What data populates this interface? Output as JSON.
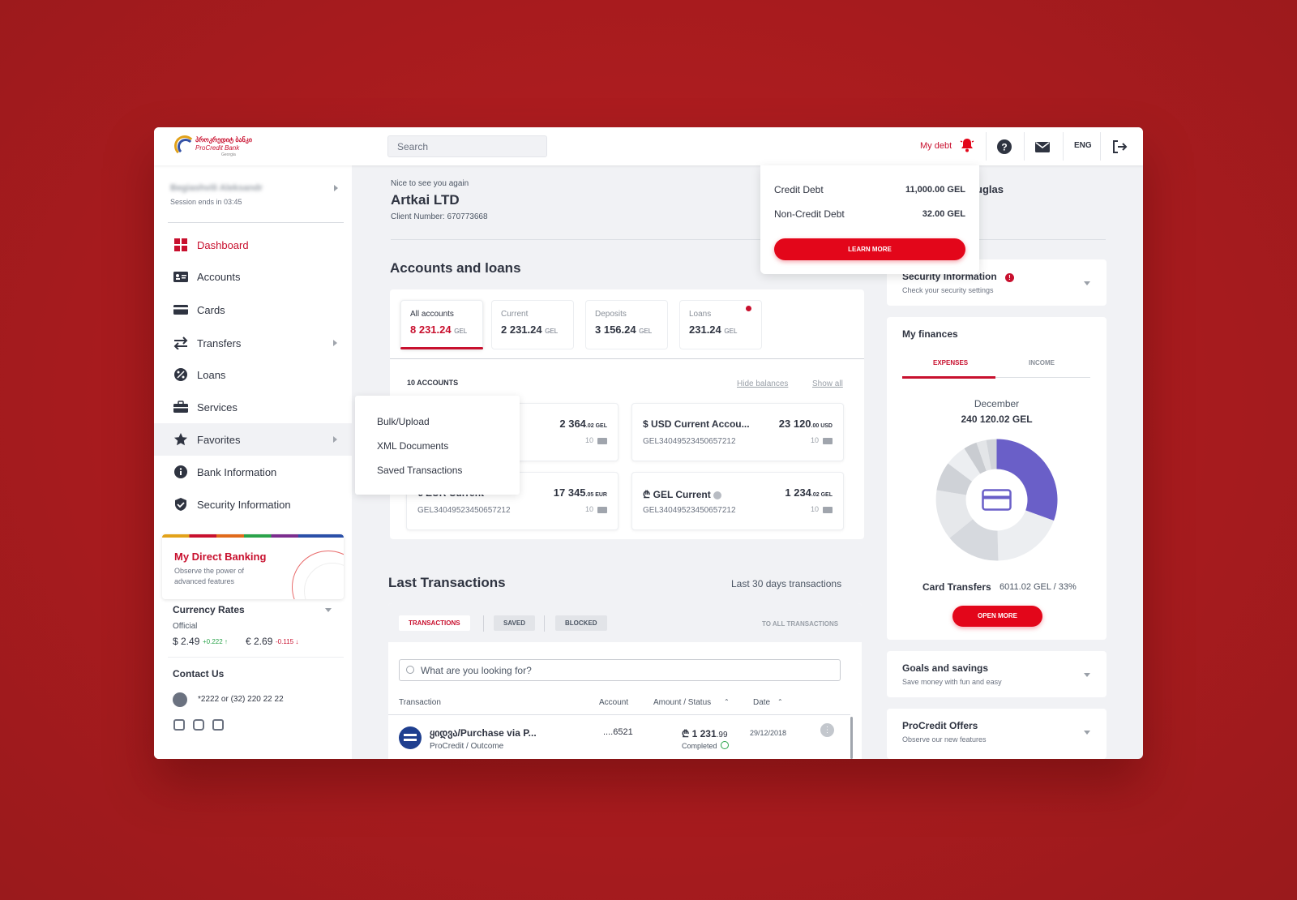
{
  "header": {
    "logo_line1": "პროკრედიტ ბანკი",
    "logo_line2": "ProCredit Bank",
    "logo_line3": "Georgia",
    "search_placeholder": "Search",
    "my_debt": "My debt",
    "language": "ENG",
    "icons": [
      "bell-icon",
      "help-icon",
      "mail-icon",
      "logout-icon"
    ]
  },
  "sidebar": {
    "user_name": "Begiashvili Aleksandr",
    "session": "Session ends in 03:45",
    "items": [
      {
        "label": "Dashboard",
        "icon": "dashboard-icon"
      },
      {
        "label": "Accounts",
        "icon": "accounts-icon"
      },
      {
        "label": "Cards",
        "icon": "card-icon"
      },
      {
        "label": "Transfers",
        "icon": "transfer-icon"
      },
      {
        "label": "Loans",
        "icon": "percent-icon"
      },
      {
        "label": "Services",
        "icon": "briefcase-icon"
      },
      {
        "label": "Favorites",
        "icon": "star-icon"
      },
      {
        "label": "Bank Information",
        "icon": "info-icon"
      },
      {
        "label": "Security Information",
        "icon": "shield-icon"
      }
    ],
    "promo": {
      "title": "My Direct Banking",
      "subtitle": "Observe the power of advanced features"
    },
    "currency": {
      "title": "Currency Rates",
      "type": "Official",
      "usd": "$ 2.49",
      "usd_change": "+0.222 ↑",
      "eur": "€ 2.69",
      "eur_change": "-0.115 ↓"
    },
    "contact": {
      "title": "Contact Us",
      "phone": "*2222 or (32) 220 22 22"
    }
  },
  "favorites_menu": [
    "Bulk/Upload",
    "XML Documents",
    "Saved Transactions"
  ],
  "main": {
    "greeting": "Nice to see you again",
    "company": "Artkai LTD",
    "client_number": "Client Number: 670773668",
    "accounts_title": "Accounts and loans",
    "tabs": [
      {
        "label": "All accounts",
        "value": "8 231.24",
        "currency": "GEL"
      },
      {
        "label": "Current",
        "value": "2 231.24",
        "currency": "GEL"
      },
      {
        "label": "Deposits",
        "value": "3 156.24",
        "currency": "GEL"
      },
      {
        "label": "Loans",
        "value": "231.24",
        "currency": "GEL"
      }
    ],
    "accounts_count": "10 ACCOUNTS",
    "hide_balances": "Hide balances",
    "show_all": "Show all",
    "accounts": [
      {
        "name": "",
        "iban": "",
        "amount": "2 364",
        "decimals": ".02 GEL",
        "cards": "10"
      },
      {
        "name": "USD Current Accou...",
        "iban": "GEL34049523450657212",
        "amount": "23 120",
        "decimals": ".00 USD",
        "cards": "10",
        "symbol": "$"
      },
      {
        "name": "EUR Current",
        "iban": "GEL34049523450657212",
        "amount": "17 345",
        "decimals": ".05 EUR",
        "cards": "10",
        "symbol": "€"
      },
      {
        "name": "GEL Current",
        "iban": "GEL34049523450657212",
        "amount": "1 234",
        "decimals": ".02 GEL",
        "cards": "10",
        "symbol": "₾"
      }
    ],
    "transactions_title": "Last Transactions",
    "transactions_sub": "Last 30 days transactions",
    "tx_tabs": [
      "TRANSACTIONS",
      "SAVED",
      "BLOCKED"
    ],
    "tx_all": "TO ALL TRANSACTIONS",
    "tx_search": "What are you looking for?",
    "tx_columns": [
      "Transaction",
      "Account",
      "Amount / Status",
      "Date"
    ],
    "tx_rows": [
      {
        "name": "ყიდვა/Purchase via P...",
        "sub": "ProCredit / Outcome",
        "account": "....6521",
        "amount": "₾ 1 231",
        "decimals": ".99",
        "status": "Completed",
        "date": "29/12/2018"
      }
    ]
  },
  "debt_popup": {
    "credit_label": "Credit Debt",
    "credit_value": "11,000.00 GEL",
    "noncredit_label": "Non-Credit Debt",
    "noncredit_value": "32.00 GEL",
    "button": "LEARN MORE"
  },
  "right": {
    "name_partial": "uglas",
    "security": {
      "title": "Security Information",
      "sub": "Check your security settings"
    },
    "finances": {
      "title": "My finances",
      "tabs": [
        "EXPENSES",
        "INCOME"
      ],
      "month": "December",
      "total": "240 120.02 GEL",
      "highlight_label": "Card Transfers",
      "highlight_value": "6011.02 GEL / 33%",
      "button": "OPEN MORE",
      "accent": "#6a5fc8"
    },
    "goals": {
      "title": "Goals and savings",
      "sub": "Save money with fun and easy"
    },
    "offers": {
      "title": "ProCredit Offers",
      "sub": "Observe our new features"
    }
  }
}
